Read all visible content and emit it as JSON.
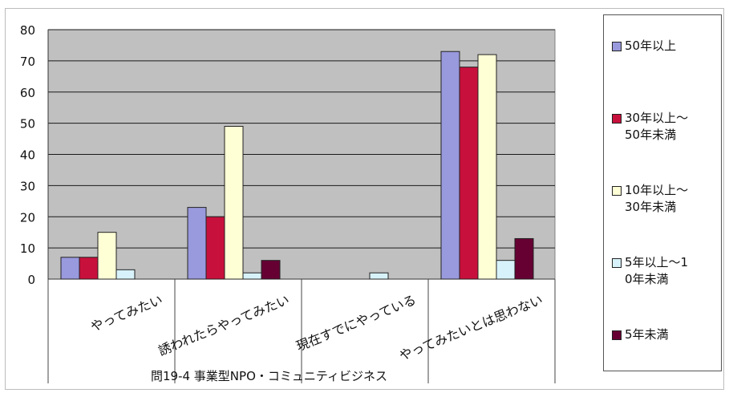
{
  "chart_data": {
    "type": "bar",
    "categories": [
      "やってみたい",
      "誘われたらやってみたい",
      "現在すでにやっている",
      "やってみたいとは思わない"
    ],
    "ylim": [
      0,
      80
    ],
    "yticks": [
      0,
      10,
      20,
      30,
      40,
      50,
      60,
      70,
      80
    ],
    "grid": true,
    "legend_position": "right",
    "plot_background": "#c0c0c0",
    "series": [
      {
        "name": "50年以上",
        "color": "#9999dd",
        "values": [
          7,
          23,
          0,
          73
        ]
      },
      {
        "name": "30年以上～\n50年未満",
        "color": "#c8103c",
        "values": [
          7,
          20,
          0,
          68
        ]
      },
      {
        "name": "10年以上～\n30年未満",
        "color": "#ffffd6",
        "values": [
          15,
          49,
          0,
          72
        ]
      },
      {
        "name": "5年以上～1\n0年未満",
        "color": "#d8f2fb",
        "values": [
          3,
          2,
          2,
          6
        ]
      },
      {
        "name": "5年未満",
        "color": "#660033",
        "values": [
          0,
          6,
          0,
          13
        ]
      }
    ],
    "caption": "問19-4 事業型NPO・コミュニティビジネス"
  }
}
